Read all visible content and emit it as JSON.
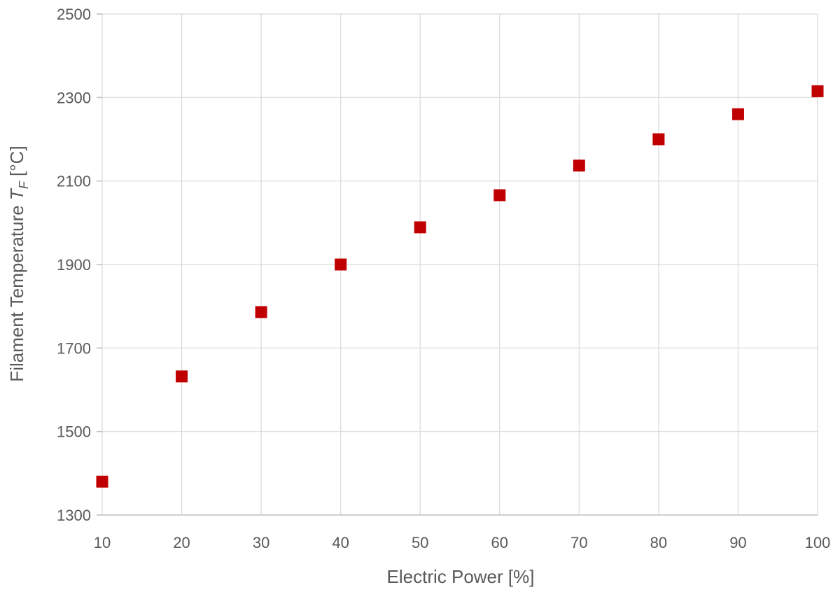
{
  "chart_data": {
    "type": "scatter",
    "title": "",
    "xlabel": "Electric Power [%]",
    "ylabel": {
      "prefix": "Filament Temperature ",
      "symbol": "T",
      "subscript": "F",
      "suffix": " [°C]"
    },
    "xlim": [
      10,
      100
    ],
    "ylim": [
      1300,
      2500
    ],
    "x_ticks": [
      10,
      20,
      30,
      40,
      50,
      60,
      70,
      80,
      90,
      100
    ],
    "y_ticks": [
      1300,
      1500,
      1700,
      1900,
      2100,
      2300,
      2500
    ],
    "grid": true,
    "legend": "none",
    "marker": "square",
    "series": [
      {
        "color": "#c00000",
        "points": [
          {
            "x": 10,
            "y": 1380
          },
          {
            "x": 20,
            "y": 1632
          },
          {
            "x": 30,
            "y": 1786
          },
          {
            "x": 40,
            "y": 1900
          },
          {
            "x": 50,
            "y": 1989
          },
          {
            "x": 60,
            "y": 2066
          },
          {
            "x": 70,
            "y": 2137
          },
          {
            "x": 80,
            "y": 2200
          },
          {
            "x": 90,
            "y": 2260
          },
          {
            "x": 100,
            "y": 2315
          }
        ]
      }
    ]
  }
}
